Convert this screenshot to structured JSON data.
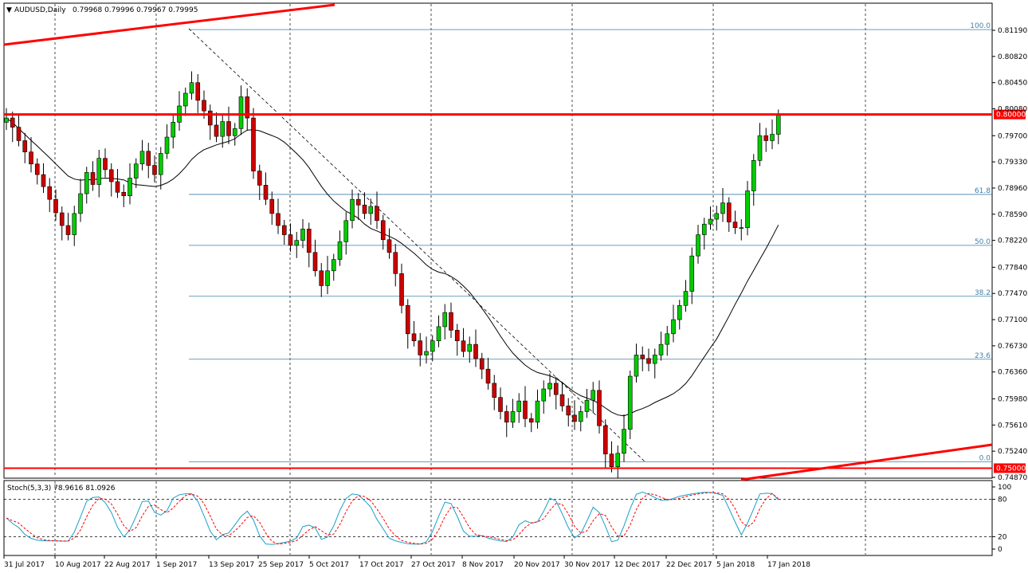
{
  "header": {
    "symbol": "AUDUSD,Daily",
    "ohlc": "0.79968 0.79996 0.79967 0.79995"
  },
  "oscillator": {
    "label": "Stoch(5,3,3) 78.9616 81.0926",
    "levels": [
      100,
      80,
      20,
      0
    ],
    "level_labels": [
      "100",
      "80",
      "20",
      "0"
    ]
  },
  "colors": {
    "bull": "#00cc00",
    "bear": "#cc0000",
    "ma": "#000000",
    "fib": "#3f7fa8",
    "trend": "#ff0000",
    "stoch_main": "#1a9fc9",
    "stoch_signal": "#ff0000"
  },
  "chart_data": {
    "type": "candlestick",
    "title": "AUDUSD,Daily",
    "ylim": [
      0.747,
      0.815
    ],
    "price_ticks": [
      "0.81190",
      "0.80820",
      "0.80450",
      "0.80080",
      "0.79700",
      "0.79330",
      "0.78960",
      "0.78590",
      "0.78220",
      "0.77840",
      "0.77470",
      "0.77100",
      "0.76730",
      "0.76360",
      "0.75980",
      "0.75610",
      "0.75240",
      "0.74870"
    ],
    "price_tags": [
      "0.80000",
      "0.75000"
    ],
    "date_labels": [
      "31 Jul 2017",
      "10 Aug 2017",
      "22 Aug 2017",
      "1 Sep 2017",
      "13 Sep 2017",
      "25 Sep 2017",
      "5 Oct 2017",
      "17 Oct 2017",
      "27 Oct 2017",
      "8 Nov 2017",
      "20 Nov 2017",
      "30 Nov 2017",
      "12 Dec 2017",
      "22 Dec 2017",
      "5 Jan 2018",
      "17 Jan 2018"
    ],
    "closes": [
      0.7995,
      0.7982,
      0.7963,
      0.7947,
      0.793,
      0.7915,
      0.7898,
      0.788,
      0.7861,
      0.7843,
      0.783,
      0.786,
      0.7888,
      0.7918,
      0.7901,
      0.7938,
      0.7922,
      0.7905,
      0.789,
      0.7885,
      0.791,
      0.793,
      0.7948,
      0.7928,
      0.7915,
      0.7945,
      0.7968,
      0.7989,
      0.8012,
      0.803,
      0.8045,
      0.802,
      0.8005,
      0.7985,
      0.7969,
      0.799,
      0.797,
      0.798,
      0.8025,
      0.7995,
      0.792,
      0.79,
      0.788,
      0.786,
      0.7843,
      0.783,
      0.7815,
      0.7822,
      0.7838,
      0.7805,
      0.7779,
      0.7758,
      0.7779,
      0.7795,
      0.782,
      0.785,
      0.788,
      0.7872,
      0.786,
      0.787,
      0.785,
      0.7823,
      0.7805,
      0.7775,
      0.773,
      0.769,
      0.768,
      0.766,
      0.7665,
      0.768,
      0.77,
      0.772,
      0.7695,
      0.768,
      0.7665,
      0.7675,
      0.7655,
      0.764,
      0.762,
      0.76,
      0.758,
      0.7565,
      0.758,
      0.7595,
      0.757,
      0.7565,
      0.7595,
      0.7612,
      0.762,
      0.7604,
      0.7588,
      0.7575,
      0.7566,
      0.758,
      0.7596,
      0.761,
      0.756,
      0.752,
      0.7502,
      0.7521,
      0.7555,
      0.763,
      0.766,
      0.7655,
      0.7648,
      0.766,
      0.7675,
      0.769,
      0.771,
      0.773,
      0.775,
      0.78,
      0.783,
      0.7845,
      0.7852,
      0.786,
      0.7875,
      0.7848,
      0.784,
      0.784,
      0.7892,
      0.7935,
      0.797,
      0.7963,
      0.7972,
      0.7999
    ],
    "ma_end": 0.7822,
    "fibonacci": [
      {
        "level": "100.0",
        "price": 0.812
      },
      {
        "level": "61.8",
        "price": 0.7887
      },
      {
        "level": "50.0",
        "price": 0.7815
      },
      {
        "level": "38.2",
        "price": 0.7743
      },
      {
        "level": "23.6",
        "price": 0.7654
      },
      {
        "level": "0.0",
        "price": 0.7509
      }
    ],
    "horizontal_lines": [
      0.8,
      0.75
    ],
    "stoch_main_end": 78.9616,
    "stoch_signal_end": 81.0926
  }
}
